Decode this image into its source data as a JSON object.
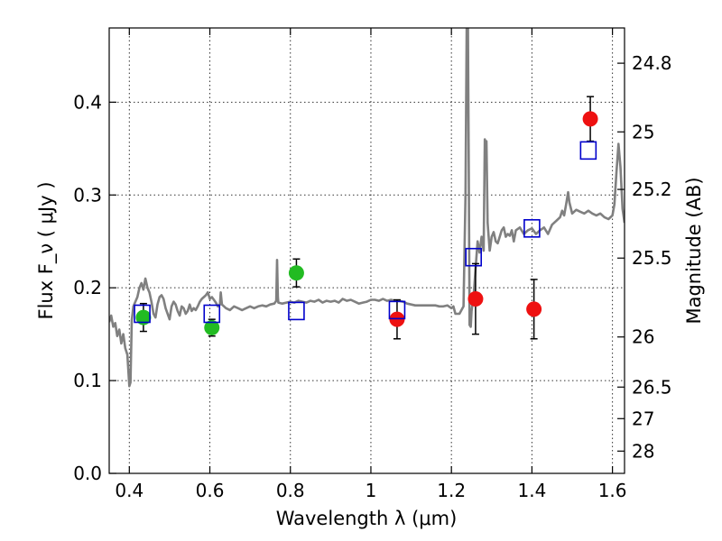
{
  "chart_data": {
    "type": "scatter",
    "xlabel": "Wavelength  λ (μm)",
    "ylabel": "Flux  F_ν  ( μJy )",
    "ylabel_right": "Magnitude (AB)",
    "xlim": [
      0.35,
      1.63
    ],
    "ylim": [
      0.0,
      0.48
    ],
    "grid": true,
    "x_ticks": [
      0.4,
      0.6,
      0.8,
      1.0,
      1.2,
      1.4,
      1.6
    ],
    "x_tick_labels": [
      "0.4",
      "0.6",
      "0.8",
      "1",
      "1.2",
      "1.4",
      "1.6"
    ],
    "y_ticks": [
      0.0,
      0.1,
      0.2,
      0.3,
      0.4
    ],
    "y_tick_labels": [
      "0.0",
      "0.1",
      "0.2",
      "0.3",
      "0.4"
    ],
    "right_ticks": [
      {
        "label": "24.8",
        "flux": 0.442
      },
      {
        "label": "25",
        "flux": 0.368
      },
      {
        "label": "25.2",
        "flux": 0.306
      },
      {
        "label": "25.5",
        "flux": 0.232
      },
      {
        "label": "26",
        "flux": 0.147
      },
      {
        "label": "26.5",
        "flux": 0.093
      },
      {
        "label": "27",
        "flux": 0.059
      },
      {
        "label": "28",
        "flux": 0.024
      }
    ],
    "colors": {
      "spectrum": "#808080",
      "green": "#22bb22",
      "red": "#ee1111",
      "model": "#0000cc",
      "errorbar": "#000000"
    },
    "series": [
      {
        "kind": "spectrum",
        "points": [
          [
            0.35,
            0.163
          ],
          [
            0.355,
            0.17
          ],
          [
            0.36,
            0.158
          ],
          [
            0.365,
            0.162
          ],
          [
            0.37,
            0.148
          ],
          [
            0.375,
            0.155
          ],
          [
            0.38,
            0.14
          ],
          [
            0.385,
            0.15
          ],
          [
            0.39,
            0.135
          ],
          [
            0.395,
            0.128
          ],
          [
            0.4,
            0.094
          ],
          [
            0.403,
            0.098
          ],
          [
            0.406,
            0.165
          ],
          [
            0.41,
            0.18
          ],
          [
            0.415,
            0.185
          ],
          [
            0.42,
            0.19
          ],
          [
            0.425,
            0.2
          ],
          [
            0.43,
            0.205
          ],
          [
            0.435,
            0.198
          ],
          [
            0.44,
            0.21
          ],
          [
            0.445,
            0.2
          ],
          [
            0.45,
            0.195
          ],
          [
            0.455,
            0.185
          ],
          [
            0.46,
            0.172
          ],
          [
            0.465,
            0.168
          ],
          [
            0.47,
            0.182
          ],
          [
            0.475,
            0.19
          ],
          [
            0.48,
            0.192
          ],
          [
            0.485,
            0.188
          ],
          [
            0.49,
            0.178
          ],
          [
            0.495,
            0.172
          ],
          [
            0.5,
            0.166
          ],
          [
            0.505,
            0.18
          ],
          [
            0.51,
            0.185
          ],
          [
            0.515,
            0.182
          ],
          [
            0.52,
            0.175
          ],
          [
            0.525,
            0.17
          ],
          [
            0.53,
            0.18
          ],
          [
            0.535,
            0.178
          ],
          [
            0.54,
            0.172
          ],
          [
            0.545,
            0.175
          ],
          [
            0.55,
            0.182
          ],
          [
            0.555,
            0.175
          ],
          [
            0.56,
            0.178
          ],
          [
            0.565,
            0.176
          ],
          [
            0.57,
            0.18
          ],
          [
            0.575,
            0.185
          ],
          [
            0.58,
            0.188
          ],
          [
            0.585,
            0.19
          ],
          [
            0.59,
            0.192
          ],
          [
            0.595,
            0.195
          ],
          [
            0.6,
            0.188
          ],
          [
            0.605,
            0.19
          ],
          [
            0.61,
            0.187
          ],
          [
            0.615,
            0.184
          ],
          [
            0.62,
            0.18
          ],
          [
            0.625,
            0.182
          ],
          [
            0.627,
            0.195
          ],
          [
            0.63,
            0.182
          ],
          [
            0.64,
            0.178
          ],
          [
            0.65,
            0.176
          ],
          [
            0.66,
            0.18
          ],
          [
            0.67,
            0.178
          ],
          [
            0.68,
            0.176
          ],
          [
            0.69,
            0.178
          ],
          [
            0.7,
            0.18
          ],
          [
            0.71,
            0.178
          ],
          [
            0.72,
            0.18
          ],
          [
            0.73,
            0.181
          ],
          [
            0.74,
            0.18
          ],
          [
            0.75,
            0.182
          ],
          [
            0.76,
            0.183
          ],
          [
            0.765,
            0.186
          ],
          [
            0.767,
            0.23
          ],
          [
            0.769,
            0.19
          ],
          [
            0.77,
            0.184
          ],
          [
            0.78,
            0.183
          ],
          [
            0.79,
            0.184
          ],
          [
            0.8,
            0.185
          ],
          [
            0.81,
            0.184
          ],
          [
            0.82,
            0.186
          ],
          [
            0.83,
            0.185
          ],
          [
            0.84,
            0.184
          ],
          [
            0.85,
            0.186
          ],
          [
            0.86,
            0.185
          ],
          [
            0.87,
            0.187
          ],
          [
            0.88,
            0.184
          ],
          [
            0.89,
            0.186
          ],
          [
            0.9,
            0.185
          ],
          [
            0.91,
            0.186
          ],
          [
            0.92,
            0.184
          ],
          [
            0.93,
            0.188
          ],
          [
            0.94,
            0.186
          ],
          [
            0.95,
            0.187
          ],
          [
            0.96,
            0.185
          ],
          [
            0.97,
            0.183
          ],
          [
            0.98,
            0.184
          ],
          [
            0.99,
            0.185
          ],
          [
            1.0,
            0.187
          ],
          [
            1.01,
            0.187
          ],
          [
            1.02,
            0.186
          ],
          [
            1.03,
            0.188
          ],
          [
            1.04,
            0.186
          ],
          [
            1.05,
            0.187
          ],
          [
            1.06,
            0.186
          ],
          [
            1.07,
            0.186
          ],
          [
            1.08,
            0.185
          ],
          [
            1.09,
            0.183
          ],
          [
            1.1,
            0.182
          ],
          [
            1.11,
            0.181
          ],
          [
            1.12,
            0.181
          ],
          [
            1.13,
            0.181
          ],
          [
            1.14,
            0.181
          ],
          [
            1.15,
            0.181
          ],
          [
            1.16,
            0.181
          ],
          [
            1.17,
            0.18
          ],
          [
            1.18,
            0.18
          ],
          [
            1.19,
            0.181
          ],
          [
            1.2,
            0.178
          ],
          [
            1.205,
            0.18
          ],
          [
            1.21,
            0.172
          ],
          [
            1.22,
            0.172
          ],
          [
            1.23,
            0.18
          ],
          [
            1.235,
            0.3
          ],
          [
            1.238,
            0.48
          ],
          [
            1.241,
            0.48
          ],
          [
            1.243,
            0.33
          ],
          [
            1.245,
            0.16
          ],
          [
            1.248,
            0.158
          ],
          [
            1.25,
            0.175
          ],
          [
            1.255,
            0.19
          ],
          [
            1.26,
            0.22
          ],
          [
            1.265,
            0.25
          ],
          [
            1.27,
            0.238
          ],
          [
            1.275,
            0.255
          ],
          [
            1.28,
            0.24
          ],
          [
            1.283,
            0.36
          ],
          [
            1.285,
            0.355
          ],
          [
            1.287,
            0.358
          ],
          [
            1.29,
            0.27
          ],
          [
            1.295,
            0.24
          ],
          [
            1.3,
            0.255
          ],
          [
            1.305,
            0.26
          ],
          [
            1.31,
            0.25
          ],
          [
            1.315,
            0.248
          ],
          [
            1.32,
            0.255
          ],
          [
            1.325,
            0.262
          ],
          [
            1.33,
            0.265
          ],
          [
            1.335,
            0.255
          ],
          [
            1.34,
            0.258
          ],
          [
            1.345,
            0.256
          ],
          [
            1.35,
            0.262
          ],
          [
            1.355,
            0.25
          ],
          [
            1.36,
            0.262
          ],
          [
            1.37,
            0.265
          ],
          [
            1.38,
            0.258
          ],
          [
            1.39,
            0.262
          ],
          [
            1.4,
            0.264
          ],
          [
            1.41,
            0.258
          ],
          [
            1.42,
            0.262
          ],
          [
            1.43,
            0.265
          ],
          [
            1.44,
            0.258
          ],
          [
            1.45,
            0.268
          ],
          [
            1.46,
            0.272
          ],
          [
            1.47,
            0.276
          ],
          [
            1.475,
            0.283
          ],
          [
            1.48,
            0.278
          ],
          [
            1.485,
            0.29
          ],
          [
            1.49,
            0.303
          ],
          [
            1.493,
            0.292
          ],
          [
            1.5,
            0.28
          ],
          [
            1.51,
            0.284
          ],
          [
            1.52,
            0.282
          ],
          [
            1.53,
            0.28
          ],
          [
            1.54,
            0.283
          ],
          [
            1.55,
            0.28
          ],
          [
            1.56,
            0.278
          ],
          [
            1.57,
            0.28
          ],
          [
            1.58,
            0.276
          ],
          [
            1.59,
            0.274
          ],
          [
            1.6,
            0.278
          ],
          [
            1.605,
            0.29
          ],
          [
            1.61,
            0.325
          ],
          [
            1.615,
            0.355
          ],
          [
            1.62,
            0.33
          ],
          [
            1.625,
            0.285
          ],
          [
            1.63,
            0.27
          ]
        ]
      },
      {
        "kind": "green_points",
        "points": [
          {
            "x": 0.435,
            "y": 0.168,
            "err": 0.015
          },
          {
            "x": 0.605,
            "y": 0.157,
            "err": 0.009
          },
          {
            "x": 0.815,
            "y": 0.216,
            "err": 0.015
          }
        ]
      },
      {
        "kind": "red_points",
        "points": [
          {
            "x": 1.065,
            "y": 0.166,
            "err": 0.021
          },
          {
            "x": 1.26,
            "y": 0.188,
            "err": 0.038
          },
          {
            "x": 1.405,
            "y": 0.177,
            "err": 0.032
          },
          {
            "x": 1.545,
            "y": 0.382,
            "err": 0.024
          }
        ]
      },
      {
        "kind": "model_squares",
        "points": [
          {
            "x": 0.432,
            "y": 0.172
          },
          {
            "x": 0.605,
            "y": 0.172
          },
          {
            "x": 0.815,
            "y": 0.175
          },
          {
            "x": 1.065,
            "y": 0.176
          },
          {
            "x": 1.255,
            "y": 0.233
          },
          {
            "x": 1.4,
            "y": 0.264
          },
          {
            "x": 1.54,
            "y": 0.348
          }
        ]
      }
    ]
  }
}
